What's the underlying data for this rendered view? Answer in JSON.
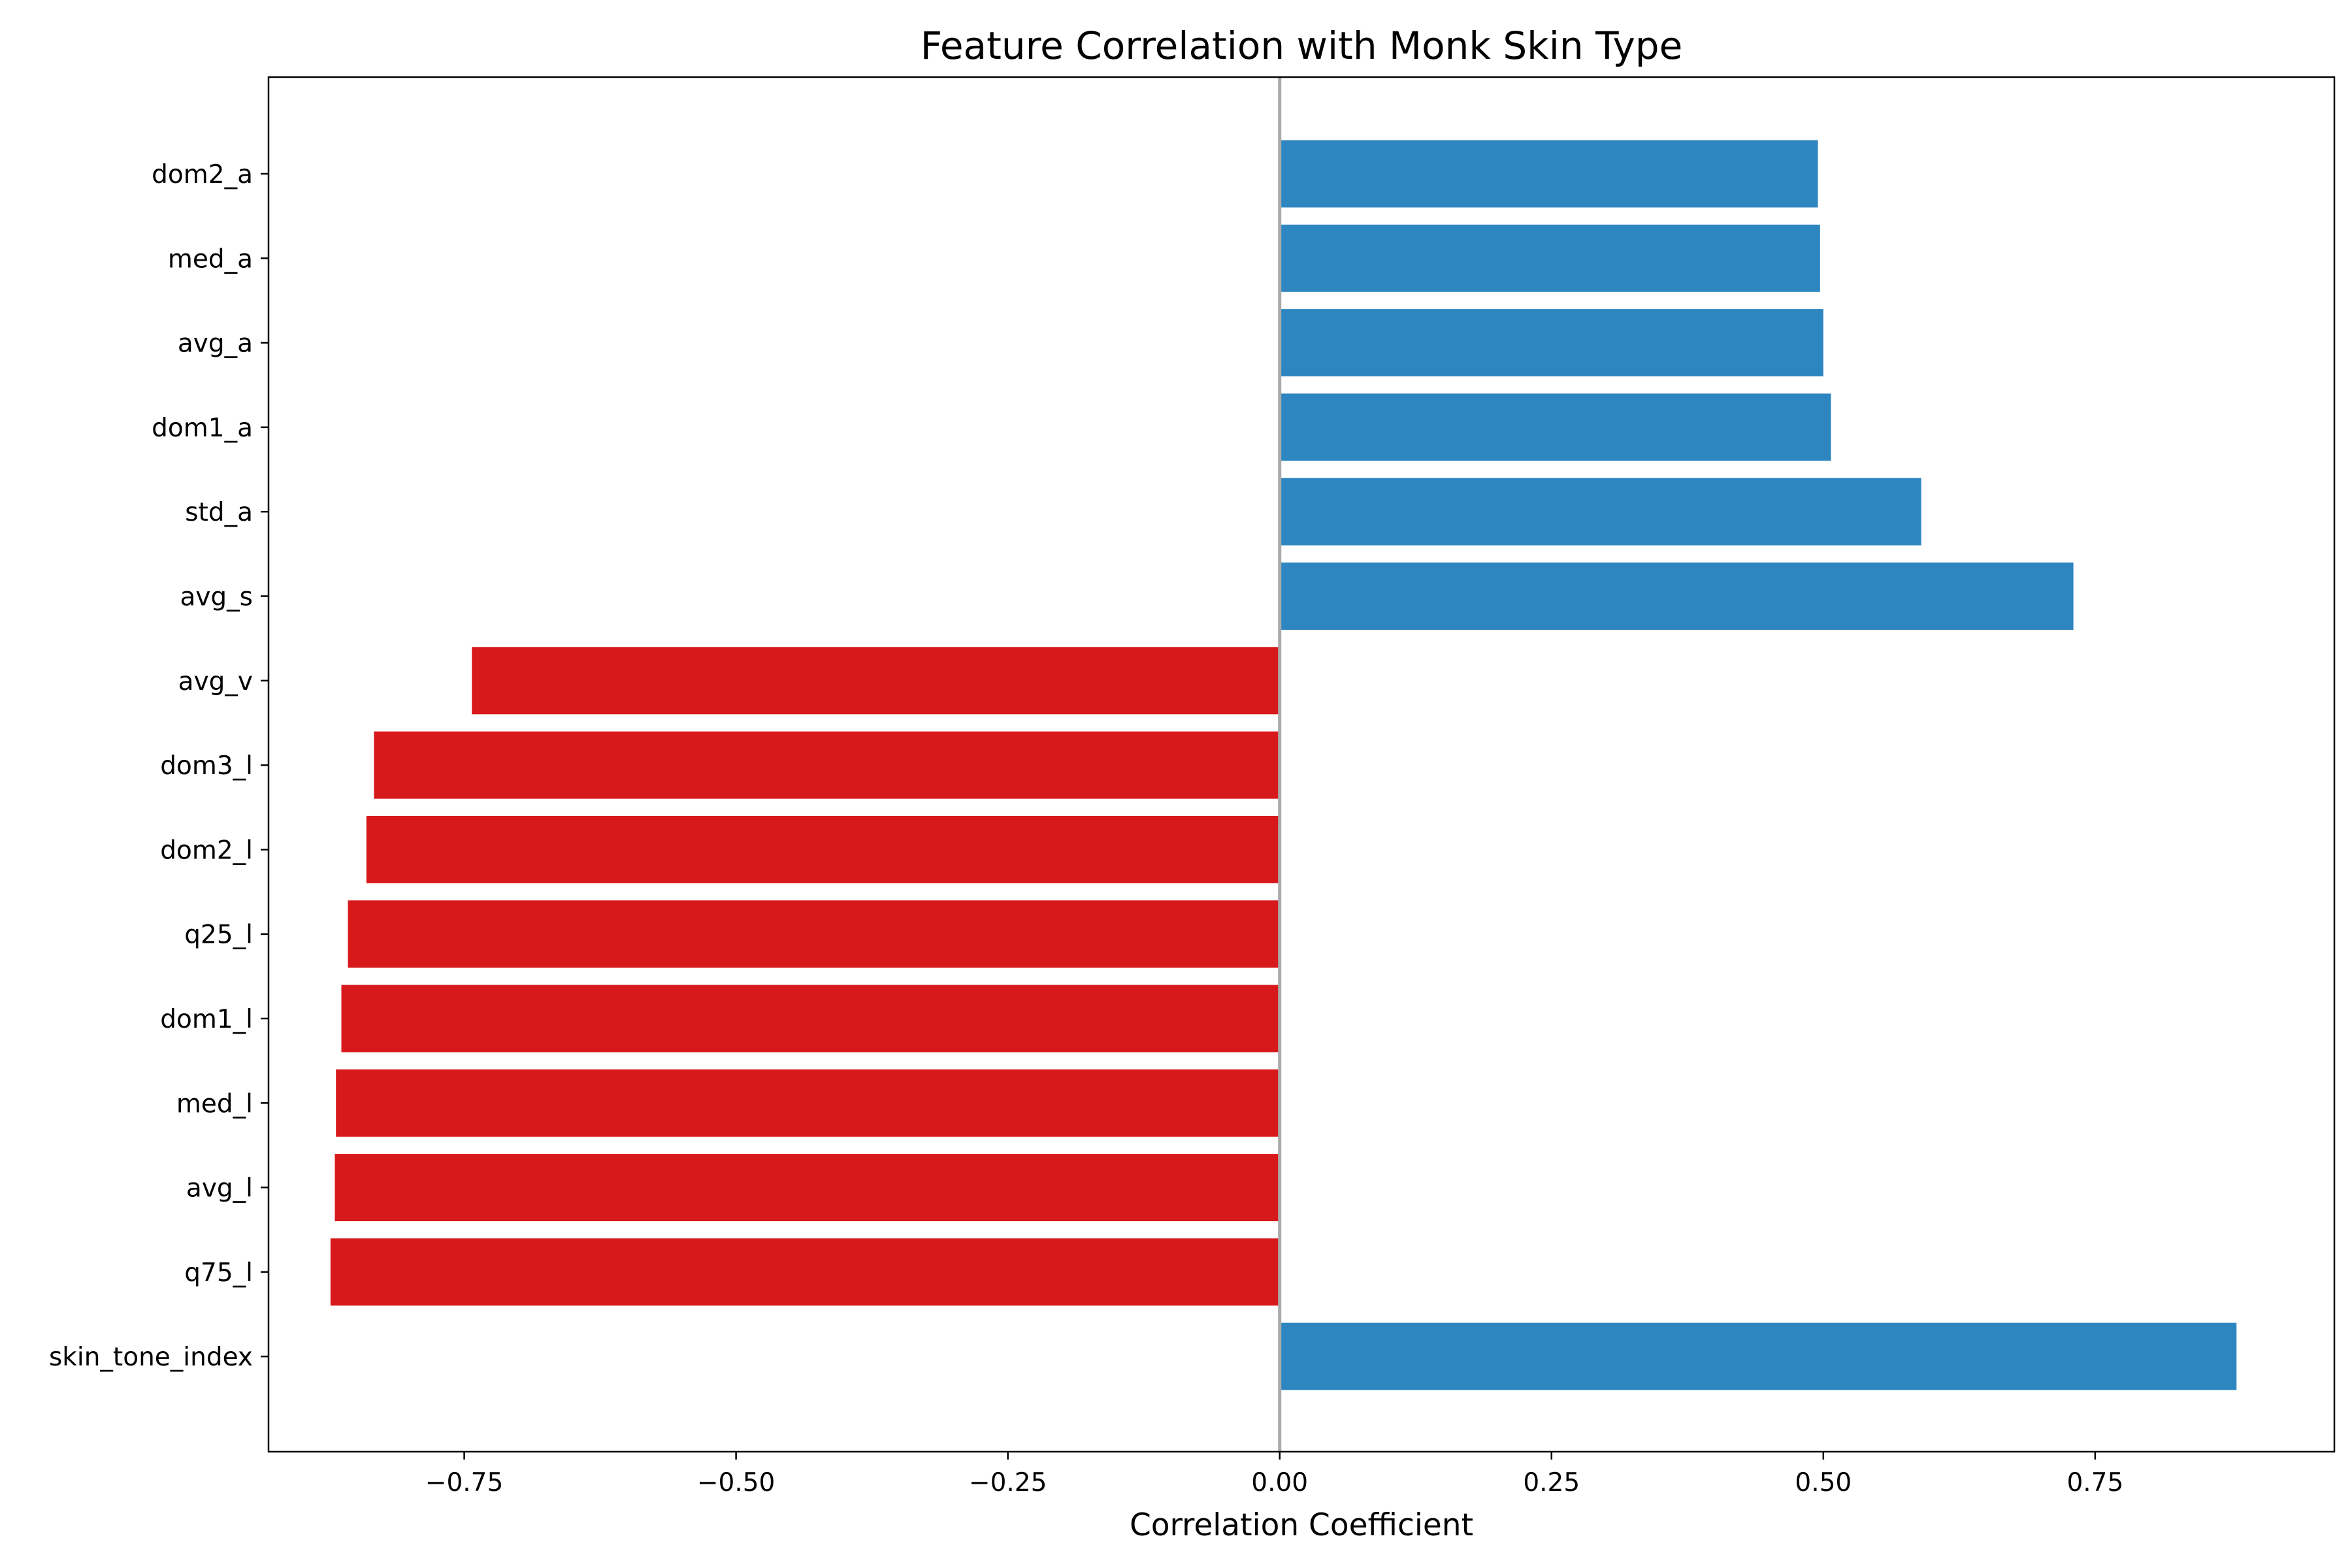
{
  "chart_data": {
    "type": "bar",
    "orientation": "horizontal",
    "title": "Feature Correlation with Monk Skin Type",
    "xlabel": "Correlation Coefficient",
    "ylabel": "",
    "xlim": [
      -0.93,
      0.97
    ],
    "xticks": [
      -0.75,
      -0.5,
      -0.25,
      0.0,
      0.25,
      0.5,
      0.75
    ],
    "xtick_labels": [
      "−0.75",
      "−0.50",
      "−0.25",
      "0.00",
      "0.25",
      "0.50",
      "0.75"
    ],
    "grid": false,
    "legend": "none",
    "zero_line": true,
    "colors": {
      "positive": "#2e86c1",
      "negative": "#d7191c",
      "zero_line": "#aaaaaa"
    },
    "categories": [
      "dom2_a",
      "med_a",
      "avg_a",
      "dom1_a",
      "std_a",
      "avg_s",
      "avg_v",
      "dom3_l",
      "dom2_l",
      "q25_l",
      "dom1_l",
      "med_l",
      "avg_l",
      "q75_l",
      "skin_tone_index"
    ],
    "values": [
      0.495,
      0.497,
      0.5,
      0.507,
      0.59,
      0.73,
      -0.743,
      -0.833,
      -0.84,
      -0.857,
      -0.863,
      -0.868,
      -0.869,
      -0.873,
      0.88
    ]
  }
}
